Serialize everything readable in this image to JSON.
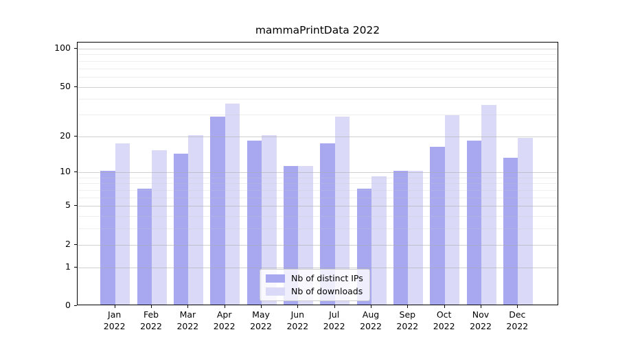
{
  "title": "mammaPrintData 2022",
  "chart_data": {
    "type": "bar",
    "title": "mammaPrintData 2022",
    "categories": [
      "Jan",
      "Feb",
      "Mar",
      "Apr",
      "May",
      "Jun",
      "Jul",
      "Aug",
      "Sep",
      "Oct",
      "Nov",
      "Dec"
    ],
    "x_year": "2022",
    "series": [
      {
        "name": "Nb of distinct IPs",
        "color": "#a8a8f0",
        "values": [
          10,
          7,
          14,
          28,
          18,
          11,
          17,
          7,
          10,
          16,
          18,
          13
        ]
      },
      {
        "name": "Nb of downloads",
        "color": "#dadaf8",
        "values": [
          17,
          15,
          20,
          36,
          20,
          11,
          28,
          9,
          10,
          29,
          35,
          19
        ]
      }
    ],
    "xlabel": "",
    "ylabel": "",
    "yscale": "log1p",
    "ylim": [
      0,
      100
    ],
    "yticks": [
      0,
      1,
      2,
      5,
      10,
      20,
      50,
      100
    ],
    "yticks_minor": [
      3,
      4,
      6,
      7,
      8,
      9,
      30,
      40,
      60,
      70,
      80,
      90
    ],
    "grid": true,
    "legend_position": "lower center",
    "colors": {
      "axis": "#000000",
      "grid_major": "#aaaaaa",
      "grid_minor": "#c8c8c8",
      "background": "#ffffff"
    }
  }
}
